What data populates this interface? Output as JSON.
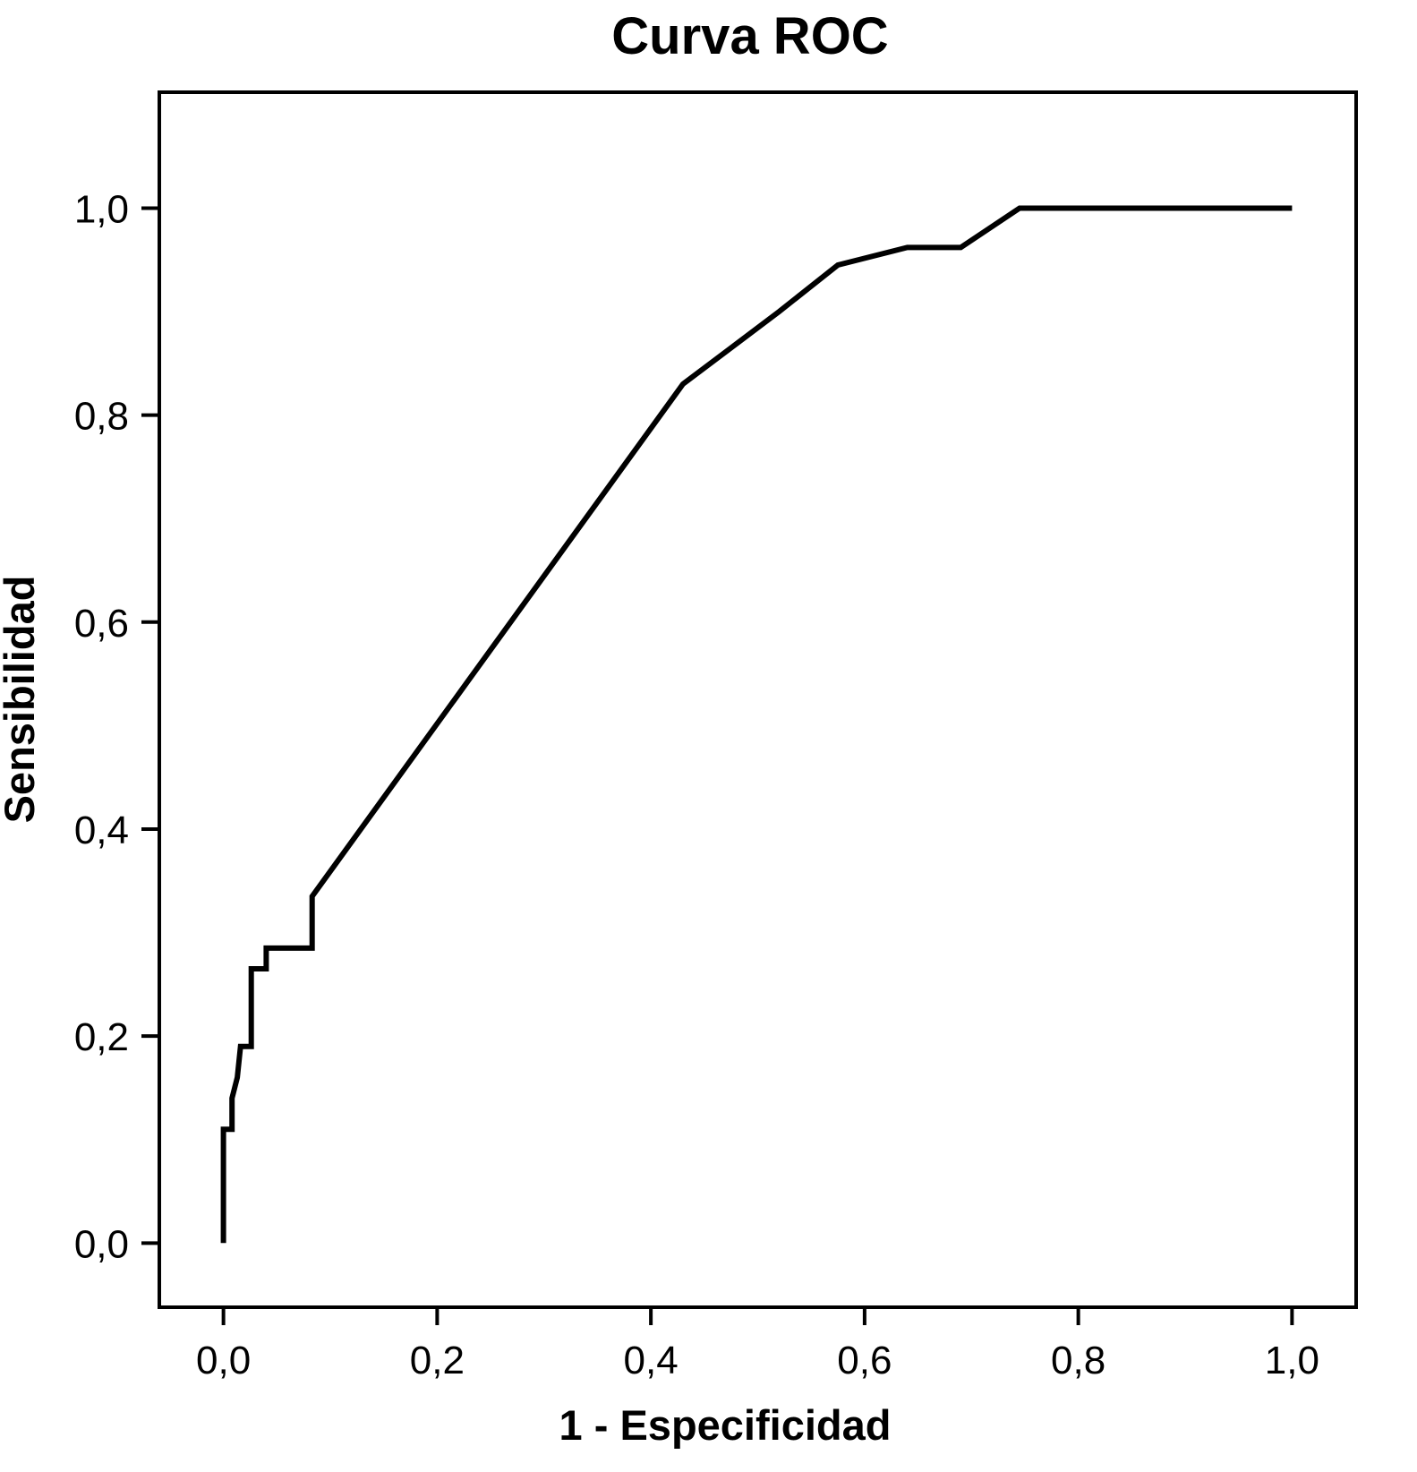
{
  "chart_data": {
    "type": "line",
    "title": "Curva ROC",
    "xlabel": "1 - Especificidad",
    "ylabel": "Sensibilidad",
    "xlim": [
      -0.06,
      1.06
    ],
    "ylim": [
      -0.062,
      1.112
    ],
    "grid": false,
    "legend": "none",
    "background_color": "#ffffff",
    "line_color": "#000000",
    "frame_color": "#000000",
    "x_tick_labels": [
      "0,0",
      "0,2",
      "0,4",
      "0,6",
      "0,8",
      "1,0"
    ],
    "x_tick_values": [
      0,
      0.2,
      0.4,
      0.6,
      0.8,
      1.0
    ],
    "y_tick_labels": [
      "0,0",
      "0,2",
      "0,4",
      "0,6",
      "0,8",
      "1,0"
    ],
    "y_tick_values": [
      0,
      0.2,
      0.4,
      0.6,
      0.8,
      1.0
    ],
    "series": [
      {
        "name": "ROC",
        "points": [
          [
            0.0,
            0.0
          ],
          [
            0.0,
            0.11
          ],
          [
            0.008,
            0.11
          ],
          [
            0.008,
            0.14
          ],
          [
            0.013,
            0.16
          ],
          [
            0.016,
            0.19
          ],
          [
            0.026,
            0.19
          ],
          [
            0.026,
            0.265
          ],
          [
            0.04,
            0.265
          ],
          [
            0.04,
            0.285
          ],
          [
            0.083,
            0.285
          ],
          [
            0.083,
            0.335
          ],
          [
            0.43,
            0.83
          ],
          [
            0.475,
            0.865
          ],
          [
            0.52,
            0.9
          ],
          [
            0.575,
            0.945
          ],
          [
            0.64,
            0.962
          ],
          [
            0.69,
            0.962
          ],
          [
            0.745,
            1.0
          ],
          [
            1.0,
            1.0
          ]
        ]
      }
    ]
  }
}
